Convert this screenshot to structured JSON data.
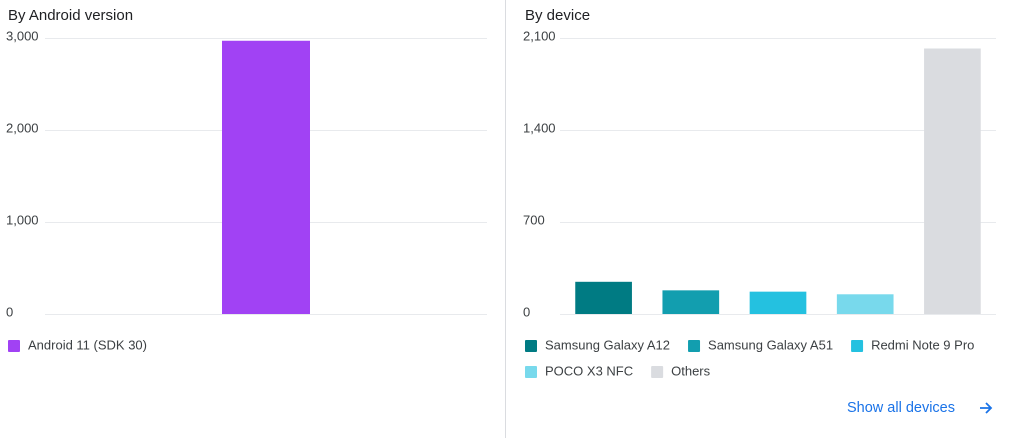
{
  "chart_data": [
    {
      "type": "bar",
      "title": "By Android version",
      "categories": [
        null
      ],
      "series": [
        {
          "name": "Android 11 (SDK 30)",
          "color": "#a142f4",
          "values": [
            2970
          ]
        }
      ],
      "ylim": [
        0,
        3000
      ],
      "yticks": [
        0,
        {
          "value": 1000,
          "label": "1,000"
        },
        {
          "value": 2000,
          "label": "2,000"
        },
        {
          "value": 3000,
          "label": "3,000"
        }
      ],
      "grid": true
    },
    {
      "type": "bar",
      "title": "By device",
      "categories": [
        null
      ],
      "series": [
        {
          "name": "Samsung Galaxy A12",
          "color": "#007b83",
          "values": [
            245
          ]
        },
        {
          "name": "Samsung Galaxy A51",
          "color": "#129eaf",
          "values": [
            180
          ]
        },
        {
          "name": "Redmi Note 9 Pro",
          "color": "#24c1e0",
          "values": [
            170
          ]
        },
        {
          "name": "POCO X3 NFC",
          "color": "#78d9ec",
          "values": [
            150
          ]
        },
        {
          "name": "Others",
          "color": "#dadce0",
          "values": [
            2020
          ]
        }
      ],
      "ylim": [
        0,
        2100
      ],
      "yticks": [
        0,
        700,
        {
          "value": 1400,
          "label": "1,400"
        },
        {
          "value": 2100,
          "label": "2,100"
        }
      ],
      "grid": true
    }
  ],
  "link": {
    "label": "Show all devices"
  }
}
